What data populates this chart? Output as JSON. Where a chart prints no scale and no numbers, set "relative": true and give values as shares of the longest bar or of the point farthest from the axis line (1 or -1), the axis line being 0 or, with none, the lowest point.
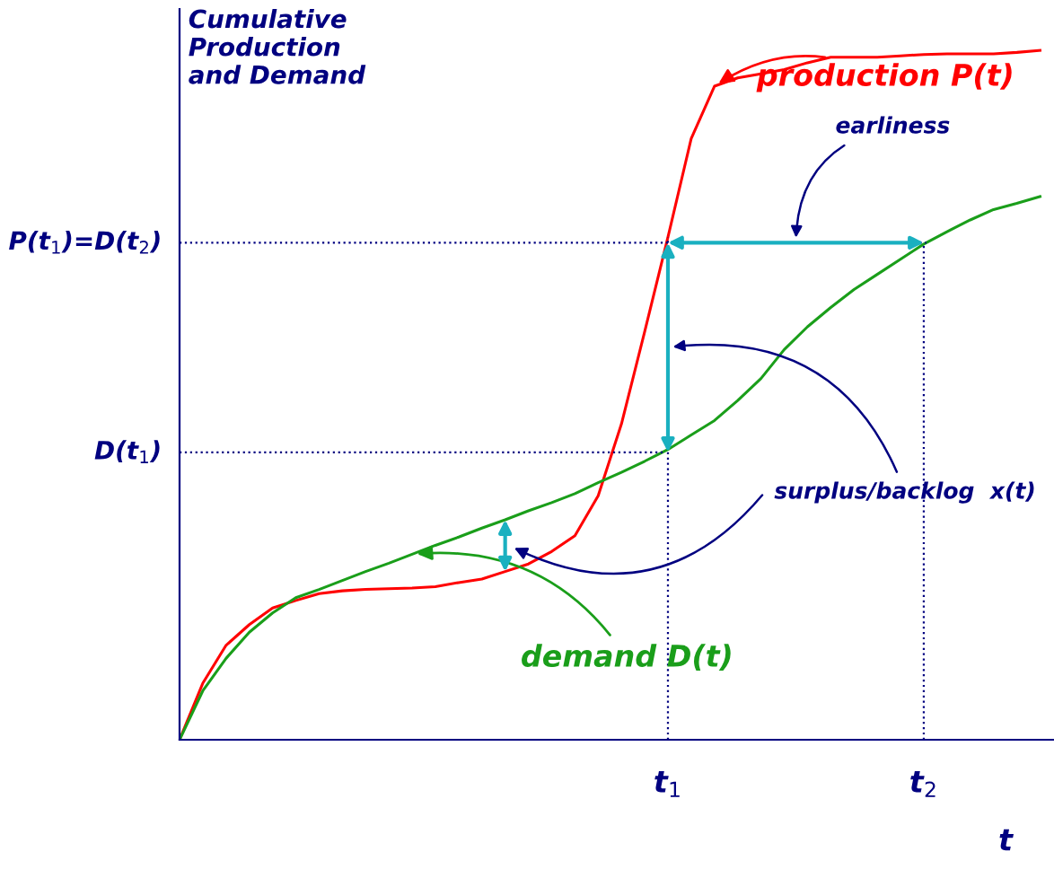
{
  "chart_data": {
    "type": "line",
    "relative": true,
    "ylabel": "Cumulative\nProduction\nand Demand",
    "xlabel": "t",
    "legend": "top right",
    "marker": "none",
    "line_style": "solid",
    "categories": [
      null,
      null,
      null,
      null,
      null,
      null,
      null,
      null,
      null,
      null,
      null,
      null,
      null,
      null,
      null,
      null,
      null,
      null,
      null,
      null,
      null,
      "t$_{1}$",
      null,
      null,
      null,
      null,
      null,
      null,
      null,
      null,
      null,
      null,
      "t$_{2}$",
      null,
      null,
      null,
      null,
      null
    ],
    "series": [
      {
        "name": "production P(t)",
        "color": "#ff0000",
        "values": [
          0,
          0.082,
          0.137,
          0.167,
          0.191,
          0.202,
          0.212,
          0.216,
          0.218,
          0.219,
          0.22,
          0.222,
          0.228,
          0.233,
          0.244,
          0.255,
          0.273,
          0.296,
          0.354,
          0.458,
          0.592,
          0.729,
          0.872,
          0.948,
          0.96,
          0.966,
          0.972,
          0.982,
          0.99,
          0.99,
          0.99,
          0.992,
          0.994,
          0.995,
          0.995,
          0.995,
          0.997,
          1
        ]
      },
      {
        "name": "demand D(t)",
        "color": "#1a9e1a",
        "values": [
          0,
          0.071,
          0.118,
          0.156,
          0.184,
          0.206,
          0.218,
          0.231,
          0.244,
          0.256,
          0.269,
          0.282,
          0.294,
          0.307,
          0.319,
          0.332,
          0.344,
          0.357,
          0.373,
          0.388,
          0.404,
          0.421,
          0.442,
          0.463,
          0.492,
          0.524,
          0.566,
          0.599,
          0.627,
          0.653,
          0.675,
          0.697,
          0.719,
          0.737,
          0.754,
          0.769,
          0.778,
          0.788
        ]
      }
    ],
    "ref_lines": [
      {
        "axis": "x",
        "value": "t$_{1}$",
        "color": "#000080",
        "line_style": "dotted"
      },
      {
        "axis": "x",
        "value": "t$_{2}$",
        "color": "#000080",
        "line_style": "dotted"
      },
      {
        "axis": "y",
        "value": 0.721,
        "label": "P(t$_{1}$)=D(t$_{2}$)",
        "color": "#000080",
        "line_style": "dotted"
      },
      {
        "axis": "y",
        "value": 0.417,
        "label": "D(t$_{1}$)",
        "color": "#000080",
        "line_style": "dotted"
      }
    ],
    "annotations": [
      "earliness",
      "surplus/backlog  x(t)"
    ]
  }
}
